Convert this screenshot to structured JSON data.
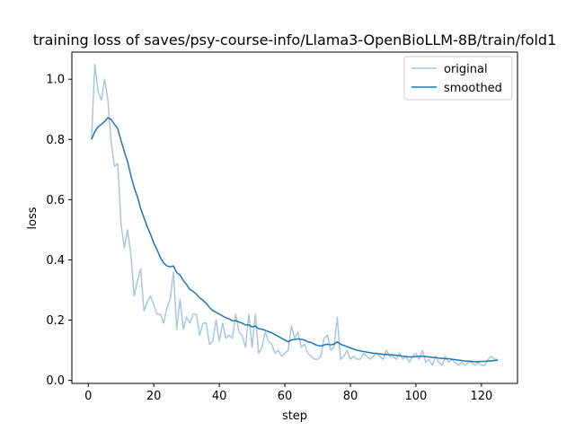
{
  "chart_data": {
    "type": "line",
    "title": "training loss of saves/psy-course-info/Llama3-OpenBioLLM-8B/train/fold1",
    "xlabel": "step",
    "ylabel": "loss",
    "xlim": [
      -5,
      131
    ],
    "ylim": [
      -0.01,
      1.09
    ],
    "xticks": [
      0,
      20,
      40,
      60,
      80,
      100,
      120
    ],
    "yticks": [
      0.0,
      0.2,
      0.4,
      0.6,
      0.8,
      1.0
    ],
    "xtick_labels": [
      "0",
      "20",
      "40",
      "60",
      "80",
      "100",
      "120"
    ],
    "ytick_labels": [
      "0.0",
      "0.2",
      "0.4",
      "0.6",
      "0.8",
      "1.0"
    ],
    "legend_position": "top-right",
    "series": [
      {
        "name": "original",
        "color": "#a6c8e0",
        "x": [
          1,
          2,
          3,
          4,
          5,
          6,
          7,
          8,
          9,
          10,
          11,
          12,
          13,
          14,
          15,
          16,
          17,
          18,
          19,
          20,
          21,
          22,
          23,
          24,
          25,
          26,
          27,
          28,
          29,
          30,
          31,
          32,
          33,
          34,
          35,
          36,
          37,
          38,
          39,
          40,
          41,
          42,
          43,
          44,
          45,
          46,
          47,
          48,
          49,
          50,
          51,
          52,
          53,
          54,
          55,
          56,
          57,
          58,
          59,
          60,
          61,
          62,
          63,
          64,
          65,
          66,
          67,
          68,
          69,
          70,
          71,
          72,
          73,
          74,
          75,
          76,
          77,
          78,
          79,
          80,
          81,
          82,
          83,
          84,
          85,
          86,
          87,
          88,
          89,
          90,
          91,
          92,
          93,
          94,
          95,
          96,
          97,
          98,
          99,
          100,
          101,
          102,
          103,
          104,
          105,
          106,
          107,
          108,
          109,
          110,
          111,
          112,
          113,
          114,
          115,
          116,
          117,
          118,
          119,
          120,
          121,
          122,
          123,
          124,
          125
        ],
        "y": [
          0.8,
          1.05,
          0.96,
          0.93,
          1.0,
          0.93,
          0.79,
          0.71,
          0.72,
          0.52,
          0.44,
          0.5,
          0.42,
          0.28,
          0.33,
          0.37,
          0.23,
          0.26,
          0.28,
          0.25,
          0.22,
          0.22,
          0.19,
          0.24,
          0.27,
          0.36,
          0.17,
          0.27,
          0.17,
          0.21,
          0.19,
          0.22,
          0.22,
          0.15,
          0.19,
          0.19,
          0.12,
          0.13,
          0.2,
          0.13,
          0.19,
          0.14,
          0.15,
          0.14,
          0.22,
          0.16,
          0.15,
          0.11,
          0.22,
          0.11,
          0.22,
          0.09,
          0.11,
          0.16,
          0.13,
          0.12,
          0.09,
          0.1,
          0.08,
          0.09,
          0.1,
          0.18,
          0.14,
          0.16,
          0.11,
          0.12,
          0.09,
          0.08,
          0.07,
          0.07,
          0.08,
          0.14,
          0.15,
          0.1,
          0.11,
          0.21,
          0.07,
          0.08,
          0.1,
          0.07,
          0.08,
          0.07,
          0.07,
          0.09,
          0.08,
          0.07,
          0.08,
          0.09,
          0.08,
          0.07,
          0.1,
          0.08,
          0.08,
          0.07,
          0.09,
          0.07,
          0.08,
          0.06,
          0.08,
          0.09,
          0.07,
          0.1,
          0.06,
          0.07,
          0.05,
          0.08,
          0.06,
          0.05,
          0.08,
          0.06,
          0.07,
          0.06,
          0.05,
          0.06,
          0.05,
          0.06,
          0.06,
          0.05,
          0.06,
          0.05,
          0.05,
          0.07,
          0.08,
          0.07,
          0.07
        ]
      },
      {
        "name": "smoothed",
        "color": "#1f77b4",
        "x": [
          1,
          2,
          3,
          4,
          5,
          6,
          7,
          8,
          9,
          10,
          11,
          12,
          13,
          14,
          15,
          16,
          17,
          18,
          19,
          20,
          21,
          22,
          23,
          24,
          25,
          26,
          27,
          28,
          29,
          30,
          31,
          32,
          33,
          34,
          35,
          36,
          37,
          38,
          39,
          40,
          41,
          42,
          43,
          44,
          45,
          46,
          47,
          48,
          49,
          50,
          51,
          52,
          53,
          54,
          55,
          56,
          57,
          58,
          59,
          60,
          61,
          62,
          63,
          64,
          65,
          66,
          67,
          68,
          69,
          70,
          71,
          72,
          73,
          74,
          75,
          76,
          77,
          78,
          79,
          80,
          81,
          82,
          83,
          84,
          85,
          86,
          87,
          88,
          89,
          90,
          91,
          92,
          93,
          94,
          95,
          96,
          97,
          98,
          99,
          100,
          101,
          102,
          103,
          104,
          105,
          106,
          107,
          108,
          109,
          110,
          111,
          112,
          113,
          114,
          115,
          116,
          117,
          118,
          119,
          120,
          121,
          122,
          123,
          124,
          125
        ],
        "y": [
          0.8,
          0.826,
          0.842,
          0.85,
          0.86,
          0.872,
          0.866,
          0.85,
          0.836,
          0.796,
          0.76,
          0.726,
          0.68,
          0.64,
          0.61,
          0.57,
          0.54,
          0.51,
          0.485,
          0.456,
          0.434,
          0.408,
          0.39,
          0.38,
          0.377,
          0.38,
          0.358,
          0.35,
          0.332,
          0.318,
          0.302,
          0.296,
          0.286,
          0.274,
          0.266,
          0.256,
          0.242,
          0.232,
          0.226,
          0.22,
          0.214,
          0.208,
          0.204,
          0.198,
          0.198,
          0.194,
          0.19,
          0.184,
          0.184,
          0.178,
          0.18,
          0.172,
          0.17,
          0.166,
          0.162,
          0.158,
          0.152,
          0.146,
          0.14,
          0.134,
          0.128,
          0.134,
          0.136,
          0.138,
          0.136,
          0.134,
          0.128,
          0.126,
          0.12,
          0.116,
          0.114,
          0.118,
          0.12,
          0.118,
          0.12,
          0.128,
          0.12,
          0.116,
          0.112,
          0.108,
          0.104,
          0.1,
          0.098,
          0.096,
          0.094,
          0.092,
          0.09,
          0.09,
          0.088,
          0.086,
          0.086,
          0.085,
          0.085,
          0.083,
          0.082,
          0.08,
          0.079,
          0.078,
          0.078,
          0.079,
          0.08,
          0.08,
          0.079,
          0.078,
          0.076,
          0.076,
          0.074,
          0.073,
          0.072,
          0.072,
          0.07,
          0.069,
          0.067,
          0.066,
          0.064,
          0.064,
          0.063,
          0.062,
          0.062,
          0.063,
          0.063,
          0.064,
          0.065,
          0.066,
          0.067
        ]
      }
    ]
  }
}
